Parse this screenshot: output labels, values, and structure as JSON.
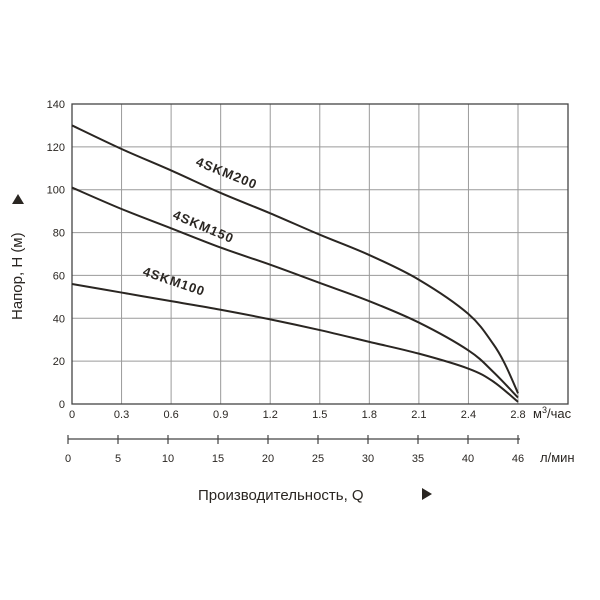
{
  "chart_data": {
    "type": "line",
    "ylabel": "Напор, Н (м)",
    "xlabel": "Производительность, Q",
    "ylim": [
      0,
      140
    ],
    "y_ticks": [
      "0",
      "20",
      "40",
      "60",
      "80",
      "100",
      "120",
      "140"
    ],
    "x_primary": {
      "unit_base": "м",
      "unit_sup": "3",
      "unit_tail": "/час",
      "ticks": [
        "0",
        "0.3",
        "0.6",
        "0.9",
        "1.2",
        "1.5",
        "1.8",
        "2.1",
        "2.4",
        "2.8"
      ],
      "values": [
        0,
        0.3,
        0.6,
        0.9,
        1.2,
        1.5,
        1.8,
        2.1,
        2.4,
        2.8
      ]
    },
    "x_secondary": {
      "unit": "л/мин",
      "ticks": [
        "0",
        "5",
        "10",
        "15",
        "20",
        "25",
        "30",
        "35",
        "40",
        "46"
      ]
    },
    "grid": true,
    "series": [
      {
        "name": "4SKM200",
        "x": [
          0,
          0.3,
          0.6,
          0.9,
          1.2,
          1.5,
          1.8,
          2.1,
          2.4,
          2.6,
          2.7,
          2.8
        ],
        "y": [
          130,
          119,
          109,
          98.5,
          89,
          79,
          69.5,
          58,
          42,
          28,
          18,
          5
        ]
      },
      {
        "name": "4SKM150",
        "x": [
          0,
          0.3,
          0.6,
          0.9,
          1.2,
          1.5,
          1.8,
          2.1,
          2.4,
          2.6,
          2.8
        ],
        "y": [
          101,
          91,
          82,
          73,
          65,
          56.5,
          48,
          38,
          25,
          15,
          3
        ]
      },
      {
        "name": "4SKM100",
        "x": [
          0,
          0.3,
          0.6,
          0.9,
          1.2,
          1.5,
          1.8,
          2.1,
          2.4,
          2.6,
          2.8
        ],
        "y": [
          56,
          52,
          48,
          44,
          39.5,
          34.5,
          29,
          23.5,
          16.5,
          10.5,
          1
        ]
      }
    ]
  }
}
